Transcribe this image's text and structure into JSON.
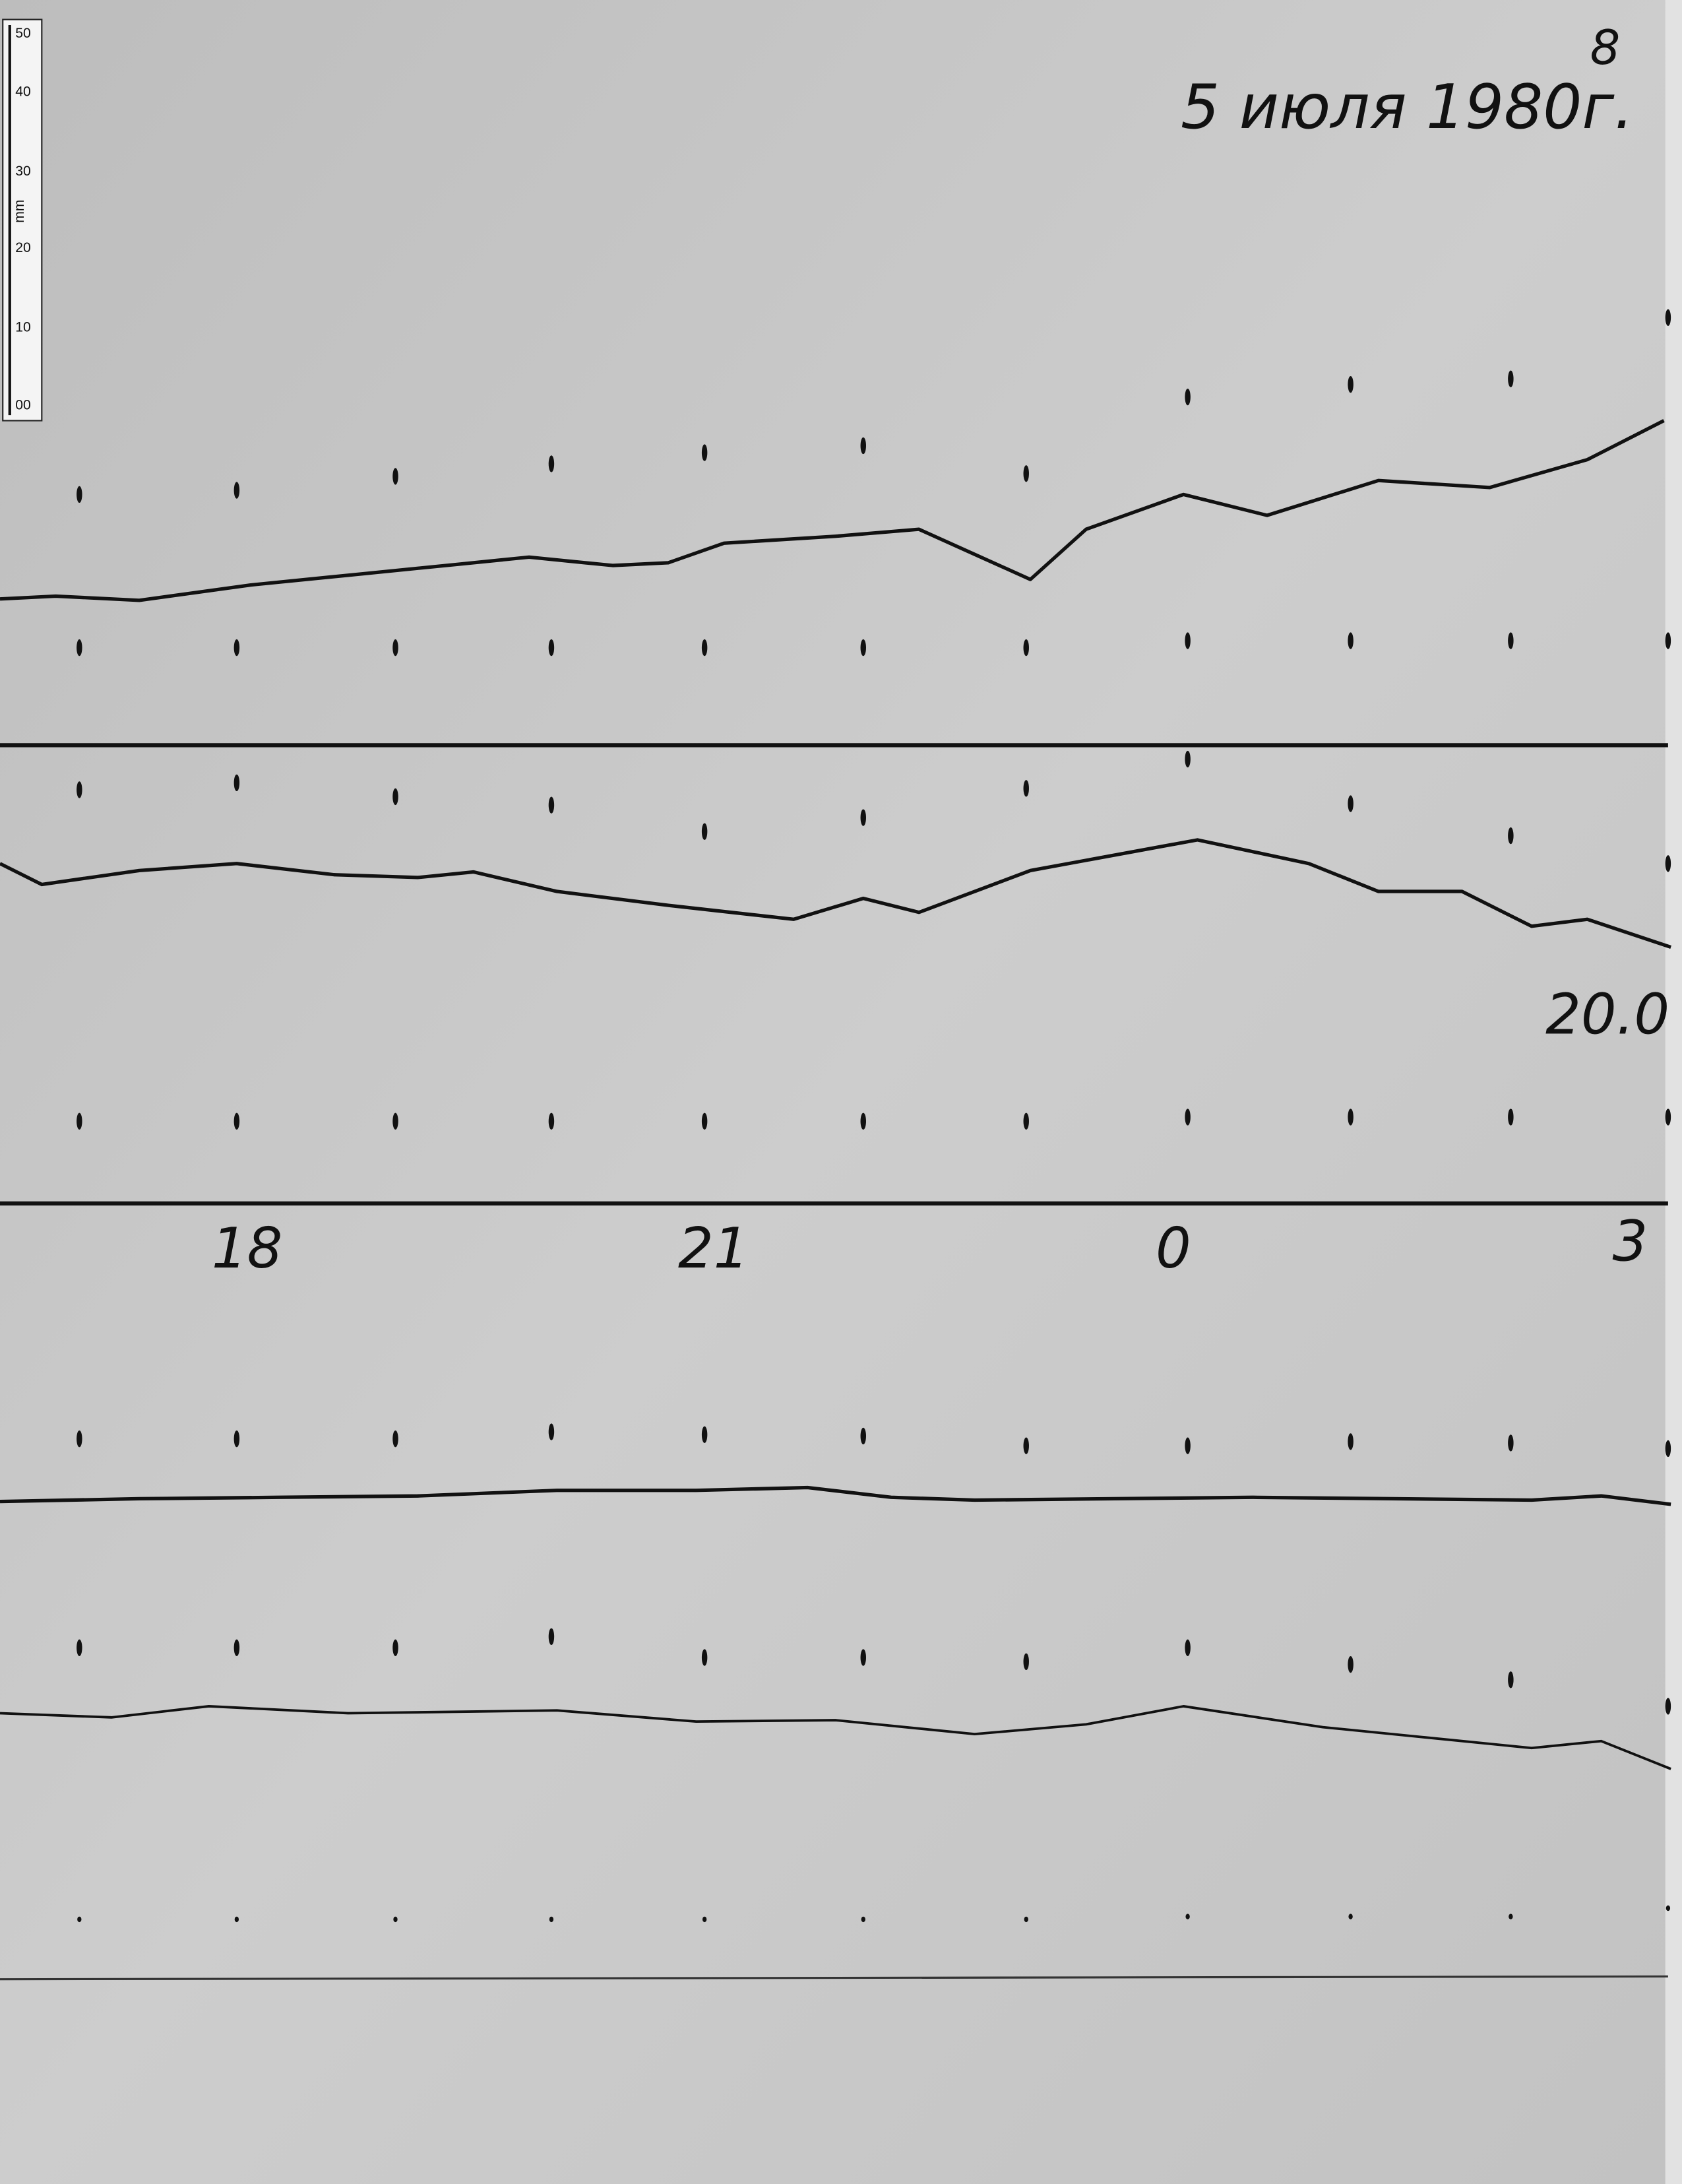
{
  "page_number": "8",
  "date": "5 июля 1980г.",
  "ruler": {
    "labels": [
      "50",
      "40",
      "30",
      "20",
      "10",
      "00"
    ],
    "unit": "mm"
  },
  "trace_label": "20.0",
  "time_labels": [
    "18",
    "21",
    "0",
    "3"
  ]
}
